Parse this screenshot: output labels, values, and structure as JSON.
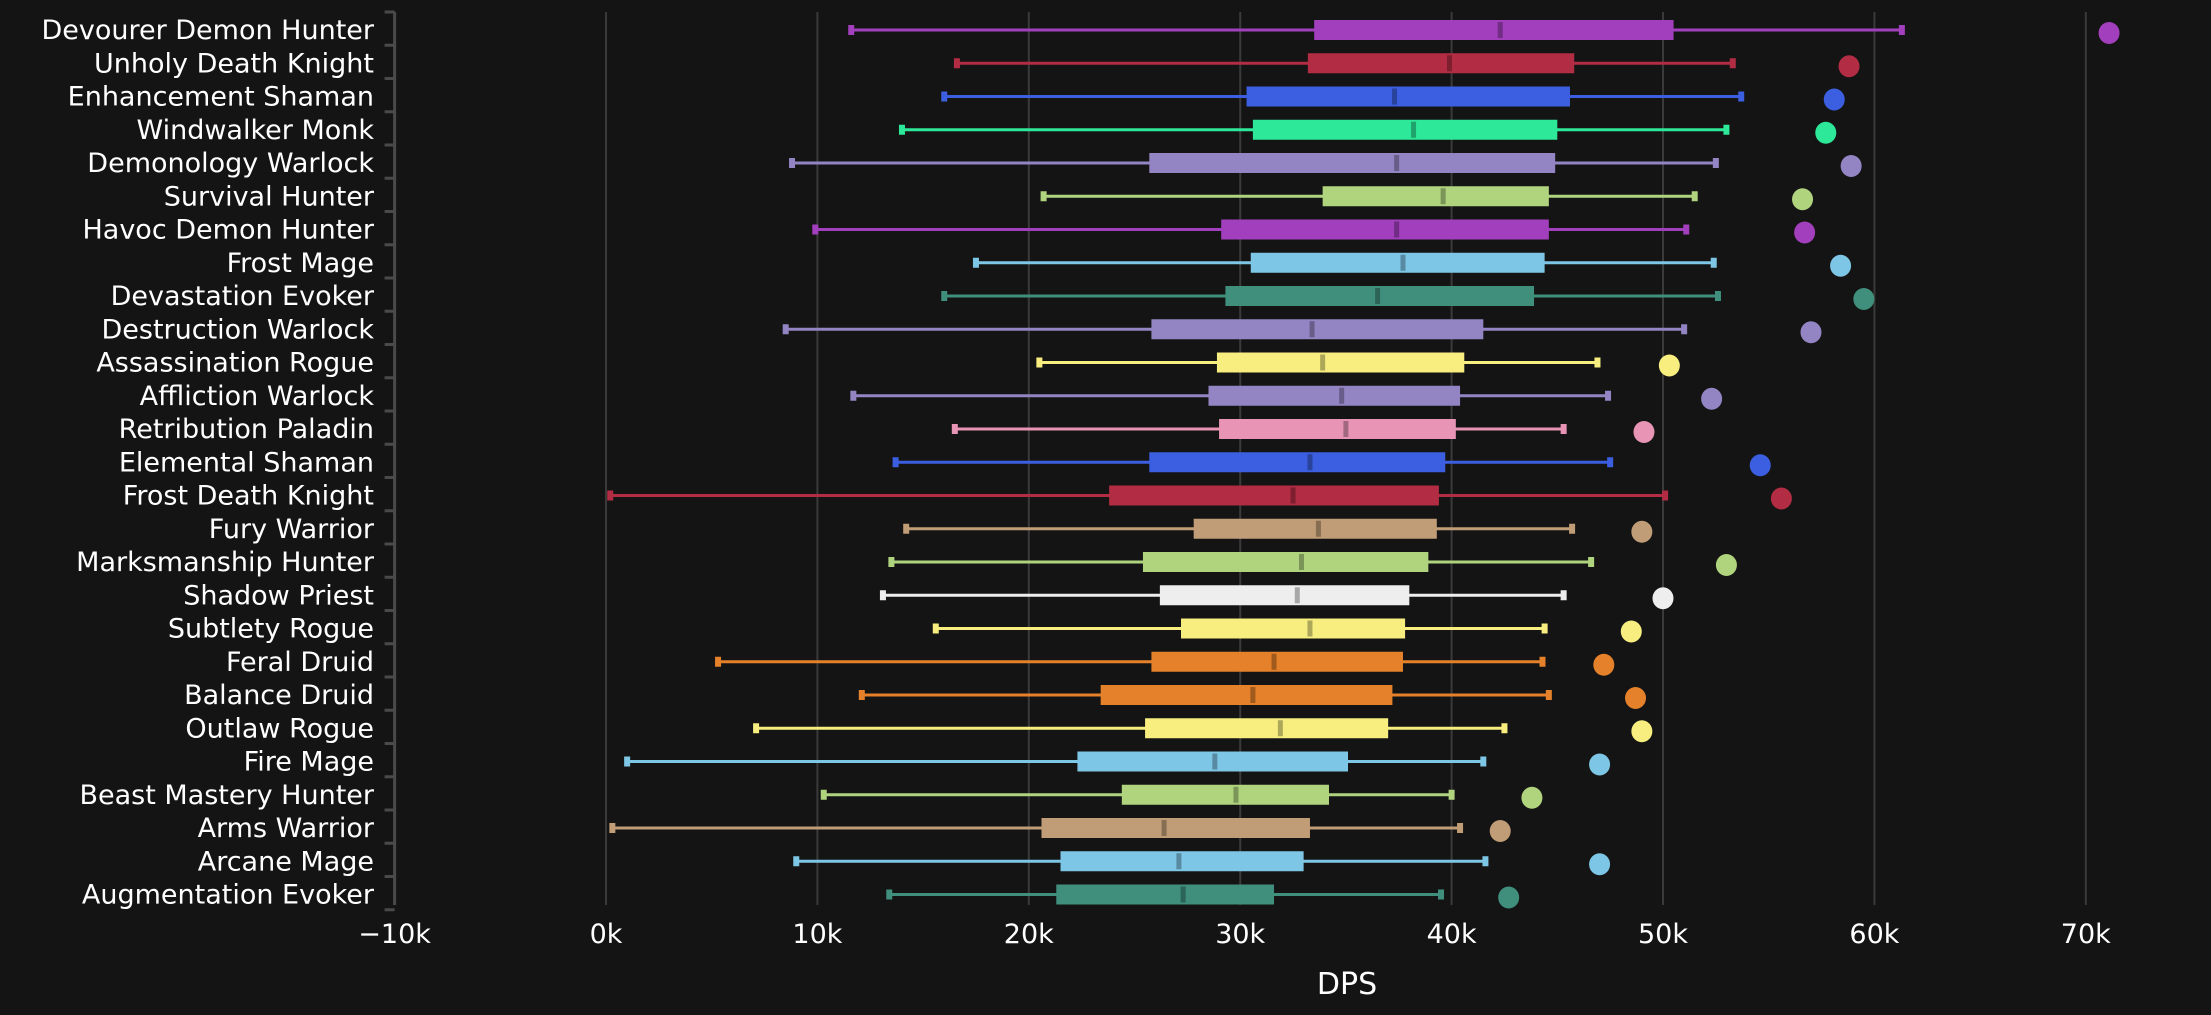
{
  "chart_data": {
    "type": "box",
    "title": "",
    "xlabel": "DPS",
    "ylabel": "",
    "xlim": [
      -10000,
      75000
    ],
    "x_ticks": [
      -10000,
      0,
      10000,
      20000,
      30000,
      40000,
      50000,
      60000,
      70000
    ],
    "x_tick_labels": [
      "−10k",
      "0k",
      "10k",
      "20k",
      "30k",
      "40k",
      "50k",
      "60k",
      "70k"
    ],
    "grid": "vertical",
    "legend": "none",
    "series": [
      {
        "name": "Devourer Demon Hunter",
        "color": "#a23fbc",
        "whisker_low": 11600,
        "q1": 33500,
        "median": 42300,
        "q3": 50500,
        "whisker_high": 61300,
        "max": 71100
      },
      {
        "name": "Unholy Death Knight",
        "color": "#b22c43",
        "whisker_low": 16600,
        "q1": 33200,
        "median": 39900,
        "q3": 45800,
        "whisker_high": 53300,
        "max": 58800
      },
      {
        "name": "Enhancement Shaman",
        "color": "#3b5fe0",
        "whisker_low": 16000,
        "q1": 30300,
        "median": 37300,
        "q3": 45600,
        "whisker_high": 53700,
        "max": 58100
      },
      {
        "name": "Windwalker Monk",
        "color": "#2de899",
        "whisker_low": 14000,
        "q1": 30600,
        "median": 38200,
        "q3": 45000,
        "whisker_high": 53000,
        "max": 57700
      },
      {
        "name": "Demonology Warlock",
        "color": "#9385c3",
        "whisker_low": 8800,
        "q1": 25700,
        "median": 37400,
        "q3": 44900,
        "whisker_high": 52500,
        "max": 58900
      },
      {
        "name": "Survival Hunter",
        "color": "#b0d47e",
        "whisker_low": 20700,
        "q1": 33900,
        "median": 39600,
        "q3": 44600,
        "whisker_high": 51500,
        "max": 56600
      },
      {
        "name": "Havoc Demon Hunter",
        "color": "#a23fbc",
        "whisker_low": 9900,
        "q1": 29100,
        "median": 37400,
        "q3": 44600,
        "whisker_high": 51100,
        "max": 56700
      },
      {
        "name": "Frost Mage",
        "color": "#7ec6e6",
        "whisker_low": 17500,
        "q1": 30500,
        "median": 37700,
        "q3": 44400,
        "whisker_high": 52400,
        "max": 58400
      },
      {
        "name": "Devastation Evoker",
        "color": "#3f8f7c",
        "whisker_low": 16000,
        "q1": 29300,
        "median": 36500,
        "q3": 43900,
        "whisker_high": 52600,
        "max": 59500
      },
      {
        "name": "Destruction Warlock",
        "color": "#9385c3",
        "whisker_low": 8500,
        "q1": 25800,
        "median": 33400,
        "q3": 41500,
        "whisker_high": 51000,
        "max": 57000
      },
      {
        "name": "Assassination Rogue",
        "color": "#f7ee7f",
        "whisker_low": 20500,
        "q1": 28900,
        "median": 33900,
        "q3": 40600,
        "whisker_high": 46900,
        "max": 50300
      },
      {
        "name": "Affliction Warlock",
        "color": "#9385c3",
        "whisker_low": 11700,
        "q1": 28500,
        "median": 34800,
        "q3": 40400,
        "whisker_high": 47400,
        "max": 52300
      },
      {
        "name": "Retribution Paladin",
        "color": "#e895b5",
        "whisker_low": 16500,
        "q1": 29000,
        "median": 35000,
        "q3": 40200,
        "whisker_high": 45300,
        "max": 49100
      },
      {
        "name": "Elemental Shaman",
        "color": "#3b5fe0",
        "whisker_low": 13700,
        "q1": 25700,
        "median": 33300,
        "q3": 39700,
        "whisker_high": 47500,
        "max": 54600
      },
      {
        "name": "Frost Death Knight",
        "color": "#b22c43",
        "whisker_low": 200,
        "q1": 23800,
        "median": 32500,
        "q3": 39400,
        "whisker_high": 50100,
        "max": 55600
      },
      {
        "name": "Fury Warrior",
        "color": "#c09d77",
        "whisker_low": 14200,
        "q1": 27800,
        "median": 33700,
        "q3": 39300,
        "whisker_high": 45700,
        "max": 49000
      },
      {
        "name": "Marksmanship Hunter",
        "color": "#b0d47e",
        "whisker_low": 13500,
        "q1": 25400,
        "median": 32900,
        "q3": 38900,
        "whisker_high": 46600,
        "max": 53000
      },
      {
        "name": "Shadow Priest",
        "color": "#eeeeee",
        "whisker_low": 13100,
        "q1": 26200,
        "median": 32700,
        "q3": 38000,
        "whisker_high": 45300,
        "max": 50000
      },
      {
        "name": "Subtlety Rogue",
        "color": "#f7ee7f",
        "whisker_low": 15600,
        "q1": 27200,
        "median": 33300,
        "q3": 37800,
        "whisker_high": 44400,
        "max": 48500
      },
      {
        "name": "Feral Druid",
        "color": "#e5812a",
        "whisker_low": 5300,
        "q1": 25800,
        "median": 31600,
        "q3": 37700,
        "whisker_high": 44300,
        "max": 47200
      },
      {
        "name": "Balance Druid",
        "color": "#e5812a",
        "whisker_low": 12100,
        "q1": 23400,
        "median": 30600,
        "q3": 37200,
        "whisker_high": 44600,
        "max": 48700
      },
      {
        "name": "Outlaw Rogue",
        "color": "#f7ee7f",
        "whisker_low": 7100,
        "q1": 25500,
        "median": 31900,
        "q3": 37000,
        "whisker_high": 42500,
        "max": 49000
      },
      {
        "name": "Fire Mage",
        "color": "#7ec6e6",
        "whisker_low": 1000,
        "q1": 22300,
        "median": 28800,
        "q3": 35100,
        "whisker_high": 41500,
        "max": 47000
      },
      {
        "name": "Beast Mastery Hunter",
        "color": "#b0d47e",
        "whisker_low": 10300,
        "q1": 24400,
        "median": 29800,
        "q3": 34200,
        "whisker_high": 40000,
        "max": 43800
      },
      {
        "name": "Arms Warrior",
        "color": "#c09d77",
        "whisker_low": 300,
        "q1": 20600,
        "median": 26400,
        "q3": 33300,
        "whisker_high": 40400,
        "max": 42300
      },
      {
        "name": "Arcane Mage",
        "color": "#7ec6e6",
        "whisker_low": 9000,
        "q1": 21500,
        "median": 27100,
        "q3": 33000,
        "whisker_high": 41600,
        "max": 47000
      },
      {
        "name": "Augmentation Evoker",
        "color": "#3f8f7c",
        "whisker_low": 13400,
        "q1": 21300,
        "median": 27300,
        "q3": 31600,
        "whisker_high": 39500,
        "max": 42700
      }
    ]
  }
}
